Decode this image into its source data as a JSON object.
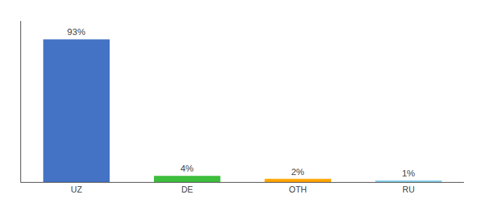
{
  "chart_data": {
    "type": "bar",
    "categories": [
      "UZ",
      "DE",
      "OTH",
      "RU"
    ],
    "values": [
      93,
      4,
      2,
      1
    ],
    "value_labels": [
      "93%",
      "4%",
      "2%",
      "1%"
    ],
    "colors": [
      "#4472C4",
      "#3DBE3D",
      "#FFA500",
      "#87CEEB"
    ],
    "ylim": [
      0,
      105
    ],
    "grid": false,
    "data_labels": true,
    "tick_labels": "x"
  }
}
